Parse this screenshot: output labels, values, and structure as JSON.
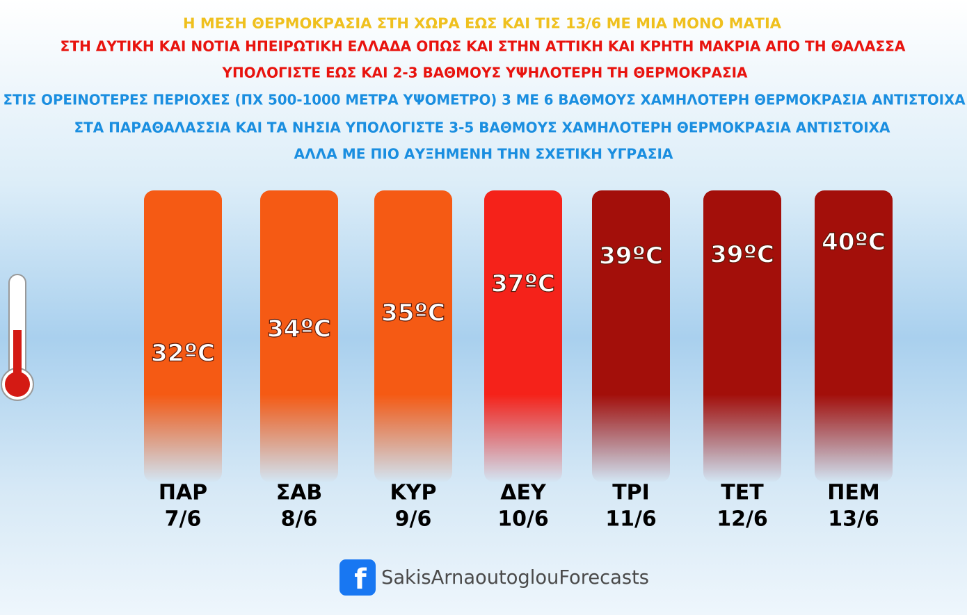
{
  "header": {
    "lines": [
      {
        "text": "Η ΜΕΣΗ ΘΕΡΜΟΚΡΑΣΙΑ ΣΤΗ ΧΩΡΑ ΕΩΣ ΚΑΙ ΤΙΣ 13/6 ΜΕ ΜΙΑ ΜΟΝΟ ΜΑΤΙΑ",
        "color": "#efc01e"
      },
      {
        "text": "ΣΤΗ ΔΥΤΙΚΗ ΚΑΙ ΝΟΤΙΑ ΗΠΕΙΡΩΤΙΚΗ ΕΛΛΑΔΑ ΟΠΩΣ ΚΑΙ ΣΤΗΝ ΑΤΤΙΚΗ ΚΑΙ ΚΡΗΤΗ ΜΑΚΡΙΑ ΑΠΟ ΤΗ ΘΑΛΑΣΣΑ",
        "color": "#e8130e"
      },
      {
        "text": "ΥΠΟΛΟΓΙΣΤΕ ΕΩΣ ΚΑΙ 2-3 ΒΑΘΜΟΥΣ ΥΨΗΛΟΤΕΡΗ ΤΗ ΘΕΡΜΟΚΡΑΣΙΑ",
        "color": "#e8130e"
      },
      {
        "text": "ΣΤΙΣ ΟΡΕΙΝΟΤΕΡΕΣ ΠΕΡΙΟΧΕΣ (ΠΧ 500-1000 ΜΕΤΡΑ ΥΨΟΜΕΤΡΟ) 3 ΜΕ 6 ΒΑΘΜΟΥΣ ΧΑΜΗΛΟΤΕΡΗ ΘΕΡΜΟΚΡΑΣΙΑ ΑΝΤΙΣΤΟΙΧΑ",
        "color": "#1a8ee0"
      },
      {
        "text": "ΣΤΑ ΠΑΡΑΘΑΛΑΣΣΙΑ ΚΑΙ ΤΑ ΝΗΣΙΑ ΥΠΟΛΟΓΙΣΤΕ 3-5 ΒΑΘΜΟΥΣ ΧΑΜΗΛΟΤΕΡΗ ΘΕΡΜΟΚΡΑΣΙΑ ΑΝΤΙΣΤΟΙΧΑ",
        "color": "#1a8ee0"
      },
      {
        "text": "ΑΛΛΑ ΜΕ ΠΙΟ ΑΥΞΗΜΕΝΗ ΤΗΝ ΣΧΕΤΙΚΗ ΥΓΡΑΣΙΑ",
        "color": "#1a8ee0"
      }
    ]
  },
  "days": [
    {
      "day": "ΠΑΡ",
      "date": "7/6",
      "temp": "32ºC",
      "color": "#f55a14"
    },
    {
      "day": "ΣΑΒ",
      "date": "8/6",
      "temp": "34ºC",
      "color": "#f55a14"
    },
    {
      "day": "ΚΥΡ",
      "date": "9/6",
      "temp": "35ºC",
      "color": "#f55a14"
    },
    {
      "day": "ΔΕΥ",
      "date": "10/6",
      "temp": "37ºC",
      "color": "#f5221a"
    },
    {
      "day": "ΤΡΙ",
      "date": "11/6",
      "temp": "39ºC",
      "color": "#a30f0a"
    },
    {
      "day": "ΤΕΤ",
      "date": "12/6",
      "temp": "39ºC",
      "color": "#a30f0a"
    },
    {
      "day": "ΠΕΜ",
      "date": "13/6",
      "temp": "40ºC",
      "color": "#a30f0a"
    }
  ],
  "footer": {
    "text": "SakisArnaoutoglouForecasts"
  }
}
